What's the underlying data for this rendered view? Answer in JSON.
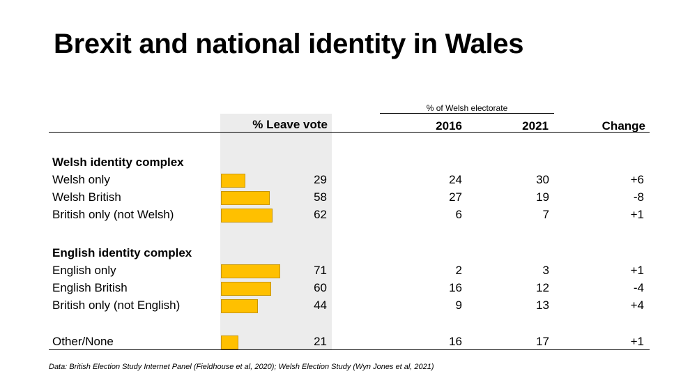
{
  "title": "Brexit and national identity in Wales",
  "header": {
    "electorate_label": "% of Welsh electorate",
    "leave_vote_label": "% Leave vote",
    "year_2016": "2016",
    "year_2021": "2021",
    "change_label": "Change"
  },
  "colors": {
    "bar_fill": "#ffc000",
    "bar_border": "#c79500",
    "shade": "#ececec"
  },
  "groups": [
    {
      "heading": "Welsh identity complex",
      "rows": [
        {
          "label": "Welsh only",
          "leave": "29",
          "y2016": "24",
          "y2021": "30",
          "change": "+6"
        },
        {
          "label": "Welsh British",
          "leave": "58",
          "y2016": "27",
          "y2021": "19",
          "change": "-8"
        },
        {
          "label": "British only (not Welsh)",
          "leave": "62",
          "y2016": "6",
          "y2021": "7",
          "change": "+1"
        }
      ]
    },
    {
      "heading": "English identity complex",
      "rows": [
        {
          "label": "English only",
          "leave": "71",
          "y2016": "2",
          "y2021": "3",
          "change": "+1"
        },
        {
          "label": "English British",
          "leave": "60",
          "y2016": "16",
          "y2021": "12",
          "change": "-4"
        },
        {
          "label": "British only (not English)",
          "leave": "44",
          "y2016": "9",
          "y2021": "13",
          "change": "+4"
        }
      ]
    },
    {
      "heading": "",
      "rows": [
        {
          "label": "Other/None",
          "leave": "21",
          "y2016": "16",
          "y2021": "17",
          "change": "+1"
        }
      ]
    }
  ],
  "source": "Data: British Election Study Internet Panel (Fieldhouse et al, 2020); Welsh Election Study (Wyn Jones et al, 2021)",
  "chart_data": {
    "type": "table",
    "title": "Brexit and national identity in Wales",
    "columns": [
      "% Leave vote",
      "2016",
      "2021",
      "Change"
    ],
    "column_group": "% of Welsh electorate",
    "categories": [
      "Welsh only",
      "Welsh British",
      "British only (not Welsh)",
      "English only",
      "English British",
      "British only (not English)",
      "Other/None"
    ],
    "series": [
      {
        "name": "% Leave vote",
        "values": [
          29,
          58,
          62,
          71,
          60,
          44,
          21
        ]
      },
      {
        "name": "2016",
        "values": [
          24,
          27,
          6,
          2,
          16,
          9,
          16
        ]
      },
      {
        "name": "2021",
        "values": [
          30,
          19,
          7,
          3,
          12,
          13,
          17
        ]
      },
      {
        "name": "Change",
        "values": [
          6,
          -8,
          1,
          1,
          -4,
          4,
          1
        ]
      }
    ]
  }
}
